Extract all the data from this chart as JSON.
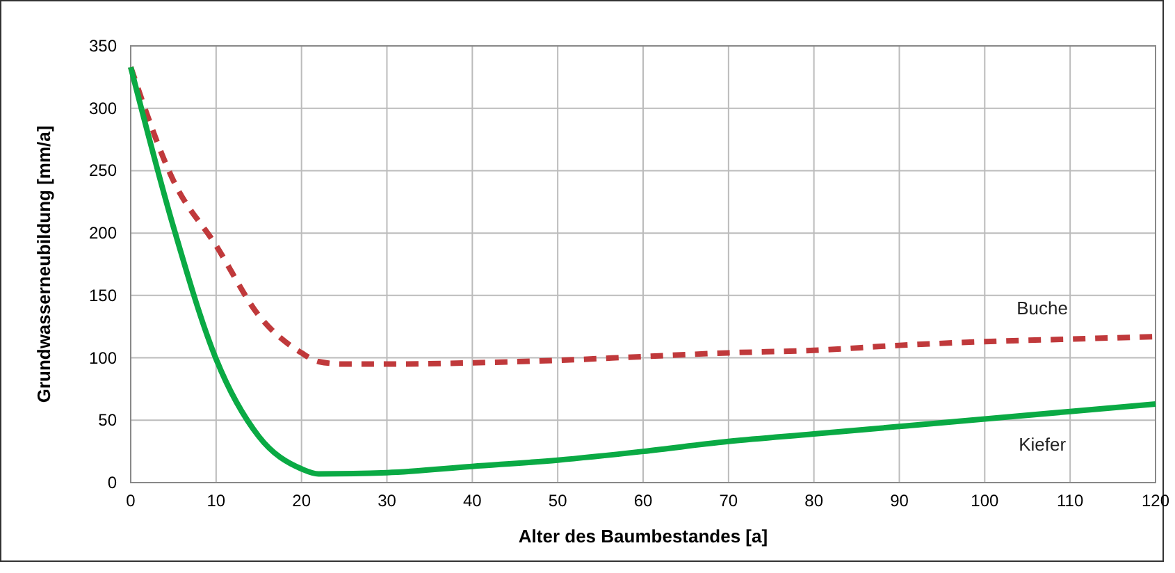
{
  "chart_data": {
    "type": "line",
    "xlabel": "Alter des Baumbestandes [a]",
    "ylabel": "Grundwasserneubildung [mm/a]",
    "xlim": [
      0,
      120
    ],
    "ylim": [
      0,
      350
    ],
    "xticks": [
      0,
      10,
      20,
      30,
      40,
      50,
      60,
      70,
      80,
      90,
      100,
      110,
      120
    ],
    "yticks": [
      0,
      50,
      100,
      150,
      200,
      250,
      300,
      350
    ],
    "grid": true,
    "series": [
      {
        "name": "Buche",
        "color": "#c0393b",
        "line_style": "dashed",
        "x": [
          0,
          5,
          10,
          15,
          20,
          22,
          25,
          30,
          40,
          50,
          60,
          70,
          80,
          90,
          100,
          110,
          120
        ],
        "values": [
          333,
          242,
          190,
          134,
          104,
          97,
          95,
          95,
          96,
          98,
          101,
          104,
          106,
          110,
          113,
          115,
          117
        ]
      },
      {
        "name": "Kiefer",
        "color": "#0aaa44",
        "line_style": "solid",
        "x": [
          0,
          5,
          10,
          15,
          20,
          22,
          30,
          40,
          50,
          60,
          70,
          80,
          90,
          100,
          110,
          120
        ],
        "values": [
          333,
          205,
          99,
          37,
          11,
          7,
          8,
          13,
          18,
          25,
          33,
          39,
          45,
          51,
          57,
          63
        ]
      }
    ]
  }
}
